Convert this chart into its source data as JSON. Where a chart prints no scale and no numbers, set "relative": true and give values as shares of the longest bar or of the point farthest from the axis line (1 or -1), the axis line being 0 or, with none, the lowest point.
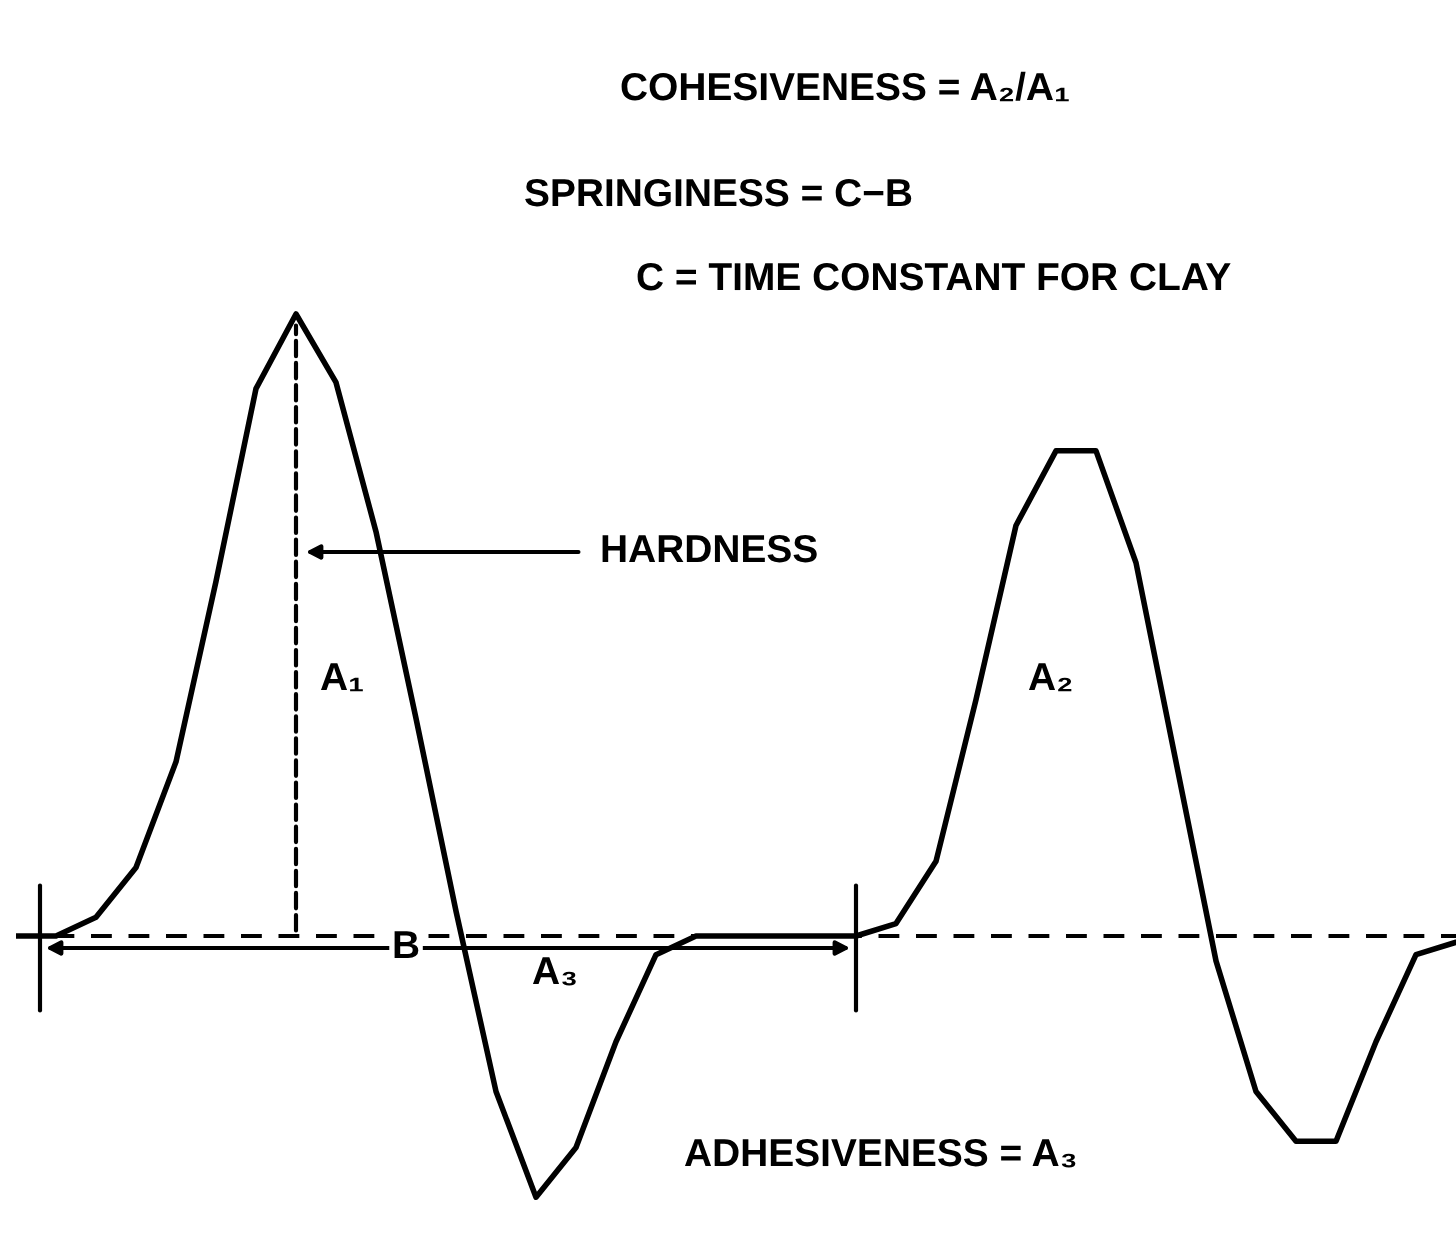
{
  "chart_data": {
    "type": "line",
    "relative": true,
    "title": "COHESIVENESS = A₂/A₁",
    "categories": [
      null,
      null,
      null,
      null,
      null,
      null,
      null,
      null,
      null,
      null,
      null,
      null,
      null,
      null,
      null,
      null,
      null,
      null,
      null,
      null,
      null,
      null,
      null,
      null,
      null,
      null,
      null,
      null,
      null,
      null,
      null,
      null,
      null,
      null,
      null,
      null,
      null
    ],
    "series": [
      {
        "color": "#000000",
        "values": [
          0,
          0,
          0.03,
          0.11,
          0.28,
          0.57,
          0.88,
          1.0,
          0.89,
          0.65,
          0.35,
          0.04,
          -0.25,
          -0.42,
          -0.34,
          -0.17,
          -0.03,
          0,
          0,
          0,
          0,
          0,
          0.02,
          0.12,
          0.38,
          0.66,
          0.78,
          0.78,
          0.6,
          0.28,
          -0.04,
          -0.25,
          -0.33,
          -0.33,
          -0.17,
          -0.03,
          -0.01
        ]
      }
    ],
    "annotations": [
      "SPRINGINESS = C−B",
      "C = TIME CONSTANT FOR CLAY",
      "HARDNESS",
      "A₁",
      "A₂",
      "A₃",
      "B",
      "ADHESIVENESS = A₃"
    ],
    "ref_lines": [
      {
        "axis": "y",
        "value": 0,
        "color": "#000000",
        "line_style": "dashed"
      }
    ],
    "grid": false,
    "legend": false,
    "marker": "none",
    "line_style": "solid"
  }
}
